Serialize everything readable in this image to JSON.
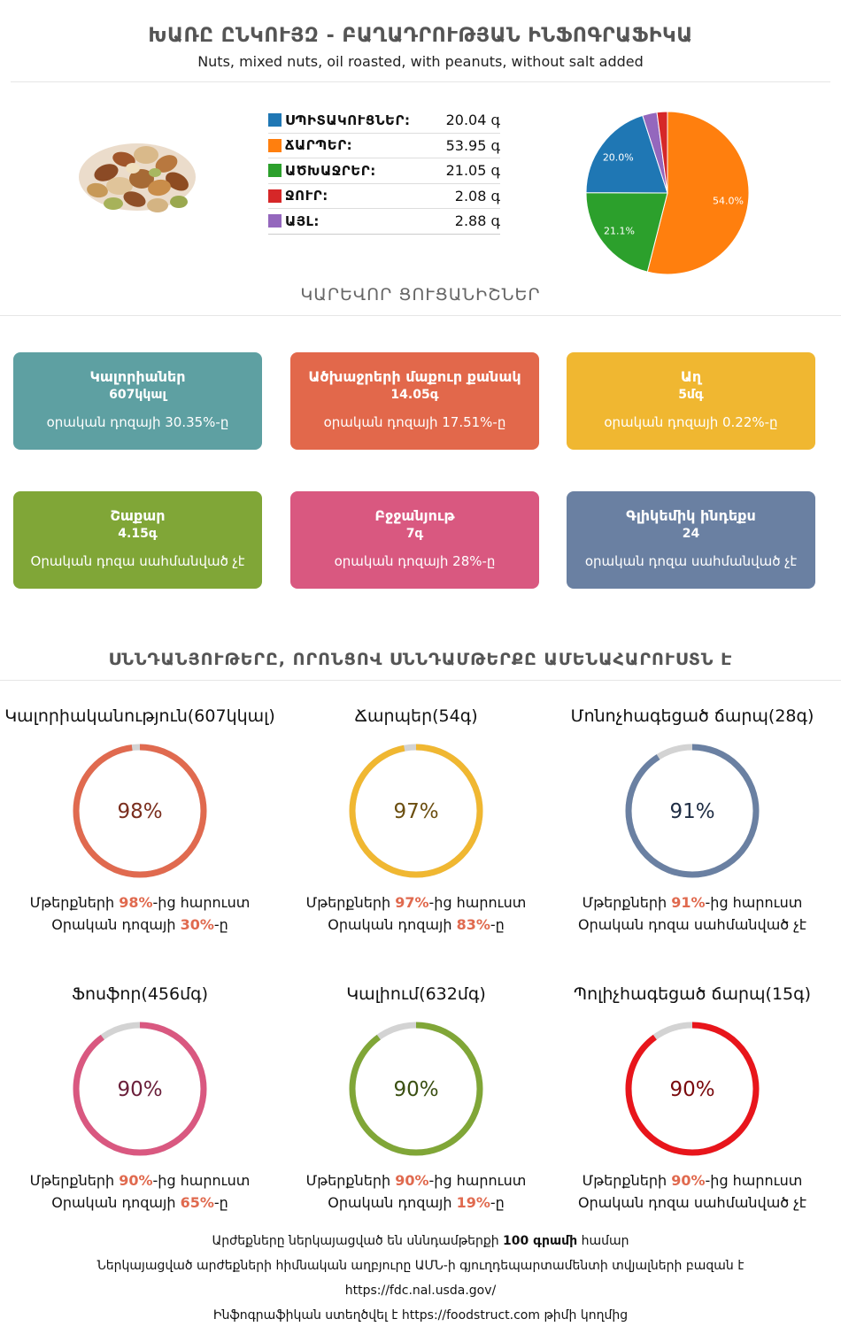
{
  "header": {
    "title": "ԽԱՌԸ ԸՆԿՈՒՅԶ - ԲԱՂԱԴՐՈՒԹՅԱՆ ԻՆՖՈԳՐԱՖԻԿԱ",
    "subtitle": "Nuts, mixed nuts, oil roasted, with peanuts, without salt added"
  },
  "macros": [
    {
      "label": "ՍՊԻՏԱԿՈՒՑՆԵՐ:",
      "value": "20.04 գ",
      "color": "#1f77b4"
    },
    {
      "label": "ՃԱՐՊԵՐ:",
      "value": "53.95 գ",
      "color": "#ff7f0e"
    },
    {
      "label": "ԱԾԽԱՋՐԵՐ:",
      "value": "21.05 գ",
      "color": "#2ca02c"
    },
    {
      "label": "ՋՈՒՐ:",
      "value": "2.08 գ",
      "color": "#d62728"
    },
    {
      "label": "ԱՅԼ:",
      "value": "2.88 գ",
      "color": "#9467bd"
    }
  ],
  "chart_data": {
    "type": "pie",
    "slices": [
      {
        "name": "ՃԱՐՊԵՐ",
        "value": 54.0,
        "label": "54.0%",
        "color": "#ff7f0e"
      },
      {
        "name": "ԱԾԽԱՋՐԵՐ",
        "value": 21.1,
        "label": "21.1%",
        "color": "#2ca02c"
      },
      {
        "name": "ՍՊԻՏԱԿՈՒՑՆԵՐ",
        "value": 20.0,
        "label": "20.0%",
        "color": "#1f77b4"
      },
      {
        "name": "ԱՅԼ",
        "value": 2.88,
        "label": "",
        "color": "#9467bd"
      },
      {
        "name": "ՋՈՒՐ",
        "value": 2.08,
        "label": "",
        "color": "#d62728"
      }
    ]
  },
  "key_section_title": "ԿԱՐԵՎՈՐ ՑՈՒՑԱՆԻՇՆԵՐ",
  "cards": [
    {
      "name": "Կալորիաներ",
      "value": "607կկալ",
      "daily": "օրական դոզայի 30.35%-ը",
      "color": "#5ea0a2"
    },
    {
      "name": "Ածխաջրերի մաքուր քանակ",
      "value": "14.05գ",
      "daily": "օրական դոզայի 17.51%-ը",
      "color": "#e2684b"
    },
    {
      "name": "Աղ",
      "value": "5մգ",
      "daily": "օրական դոզայի 0.22%-ը",
      "color": "#f0b731"
    },
    {
      "name": "Շաքար",
      "value": "4.15գ",
      "daily": "Օրական դոզա սահմանված չէ",
      "color": "#80a637"
    },
    {
      "name": "Բջջանյութ",
      "value": "7գ",
      "daily": "օրական դոզայի 28%-ը",
      "color": "#d95880"
    },
    {
      "name": "Գլիկեմիկ ինդեքս",
      "value": "24",
      "daily": "օրական դոզա սահմանված չէ",
      "color": "#6a80a2"
    }
  ],
  "highlights_title": "ՍՆՆԴԱՆՅՈՒԹԵՐԸ, ՈՐՈՆՑՈՎ ՍՆՆԴԱՄԹԵՐՔԸ ԱՄԵՆԱՀԱՐՈՒՍՏՆ Է",
  "rings": [
    {
      "name": "Կալորիականություն(607կկալ)",
      "percent": 98,
      "percent_label": "98%",
      "color": "#e06a4f",
      "text_color": "#7a2e1e",
      "line1_pre": "Մթերքների ",
      "line1_val": "98%",
      "line1_post": "-ից հարուստ",
      "line2_pre": "Օրական դոզայի ",
      "line2_val": "30%",
      "line2_post": "-ը"
    },
    {
      "name": "Ճարպեր(54գ)",
      "percent": 97,
      "percent_label": "97%",
      "color": "#f0b731",
      "text_color": "#6b4e10",
      "line1_pre": "Մթերքների ",
      "line1_val": "97%",
      "line1_post": "-ից հարուստ",
      "line2_pre": "Օրական դոզայի ",
      "line2_val": "83%",
      "line2_post": "-ը"
    },
    {
      "name": "Մոնոչհագեցած ճարպ(28գ)",
      "percent": 91,
      "percent_label": "91%",
      "color": "#6a80a2",
      "text_color": "#1f2d44",
      "line1_pre": "Մթերքների ",
      "line1_val": "91%",
      "line1_post": "-ից հարուստ",
      "line2_pre": "Օրական դոզա սահմանված չէ",
      "line2_val": "",
      "line2_post": ""
    },
    {
      "name": "Ֆոսֆոր(456մգ)",
      "percent": 90,
      "percent_label": "90%",
      "color": "#d95880",
      "text_color": "#6a1f3a",
      "line1_pre": "Մթերքների ",
      "line1_val": "90%",
      "line1_post": "-ից հարուստ",
      "line2_pre": "Օրական դոզայի ",
      "line2_val": "65%",
      "line2_post": "-ը"
    },
    {
      "name": "Կալիում(632մգ)",
      "percent": 90,
      "percent_label": "90%",
      "color": "#80a637",
      "text_color": "#3a4f12",
      "line1_pre": "Մթերքների ",
      "line1_val": "90%",
      "line1_post": "-ից հարուստ",
      "line2_pre": "Օրական դոզայի ",
      "line2_val": "19%",
      "line2_post": "-ը"
    },
    {
      "name": "Պոլիչհագեցած ճարպ(15գ)",
      "percent": 90,
      "percent_label": "90%",
      "color": "#e8151b",
      "text_color": "#7a0a0d",
      "line1_pre": "Մթերքների ",
      "line1_val": "90%",
      "line1_post": "-ից հարուստ",
      "line2_pre": "Օրական դոզա սահմանված չէ",
      "line2_val": "",
      "line2_post": ""
    }
  ],
  "footer": {
    "line1_pre": "Արժեքները ներկայացված են սննդամթերքի ",
    "line1_bold": "100 գրամի",
    "line1_post": " համար",
    "line2": "Ներկայացված արժեքների հիմնական աղբյուրը ԱՄՆ-ի գյուղդեպարտամենտի տվյալների բազան է",
    "line3": "https://fdc.nal.usda.gov/",
    "line4_pre": "Ինֆոգրաֆիկան ստեղծվել է ",
    "line4_link": "https://foodstruct.com",
    "line4_post": " թիմի կողմից"
  }
}
